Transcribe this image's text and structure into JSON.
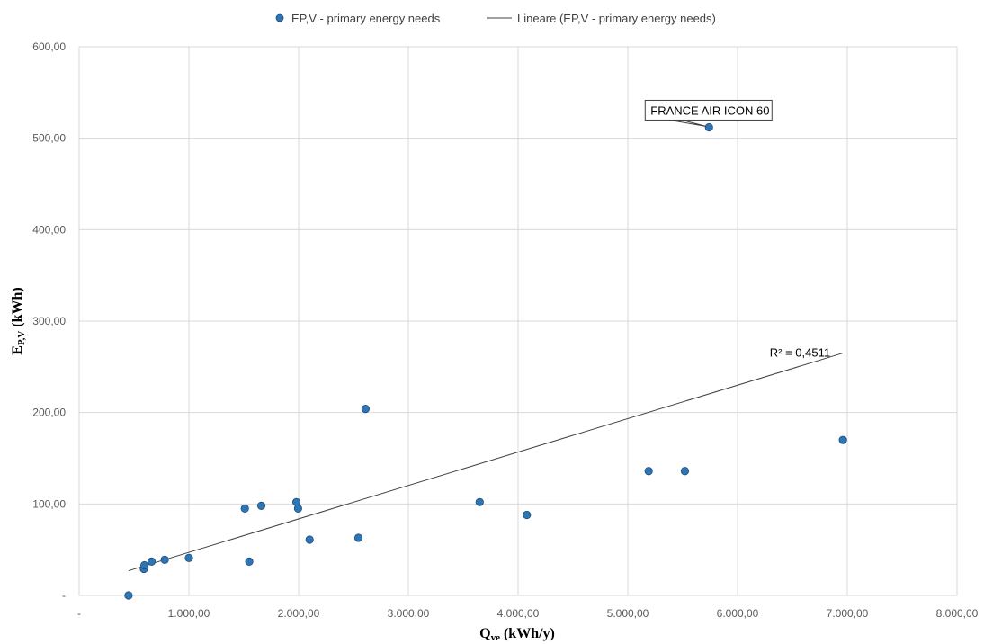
{
  "chart_data": {
    "type": "scatter",
    "xlabel": {
      "main": "Q",
      "sub": "ve",
      "rest": " (kWh/y)"
    },
    "ylabel": {
      "main": "E",
      "sub": "P,V",
      "rest": " (kWh)"
    },
    "xlim": [
      0,
      8000
    ],
    "ylim": [
      0,
      600
    ],
    "x_ticks": [
      {
        "value": 0,
        "label": "-"
      },
      {
        "value": 1000,
        "label": "1.000,00"
      },
      {
        "value": 2000,
        "label": "2.000,00"
      },
      {
        "value": 3000,
        "label": "3.000,00"
      },
      {
        "value": 4000,
        "label": "4.000,00"
      },
      {
        "value": 5000,
        "label": "5.000,00"
      },
      {
        "value": 6000,
        "label": "6.000,00"
      },
      {
        "value": 7000,
        "label": "7.000,00"
      },
      {
        "value": 8000,
        "label": "8.000,00"
      }
    ],
    "y_ticks": [
      {
        "value": 0,
        "label": "-"
      },
      {
        "value": 100,
        "label": "100,00"
      },
      {
        "value": 200,
        "label": "200,00"
      },
      {
        "value": 300,
        "label": "300,00"
      },
      {
        "value": 400,
        "label": "400,00"
      },
      {
        "value": 500,
        "label": "500,00"
      },
      {
        "value": 600,
        "label": "600,00"
      }
    ],
    "grid": true,
    "legend_position": "top",
    "series": [
      {
        "name": "EP,V - primary energy needs",
        "color": "#2e75b6",
        "points": [
          {
            "x": 450,
            "y": 0
          },
          {
            "x": 590,
            "y": 29
          },
          {
            "x": 595,
            "y": 33
          },
          {
            "x": 660,
            "y": 37
          },
          {
            "x": 780,
            "y": 39
          },
          {
            "x": 1000,
            "y": 41
          },
          {
            "x": 1510,
            "y": 95
          },
          {
            "x": 1550,
            "y": 37
          },
          {
            "x": 1660,
            "y": 98
          },
          {
            "x": 1980,
            "y": 102
          },
          {
            "x": 1995,
            "y": 95
          },
          {
            "x": 2100,
            "y": 61
          },
          {
            "x": 2545,
            "y": 63
          },
          {
            "x": 2610,
            "y": 204
          },
          {
            "x": 3650,
            "y": 102
          },
          {
            "x": 4080,
            "y": 88
          },
          {
            "x": 5190,
            "y": 136
          },
          {
            "x": 5520,
            "y": 136
          },
          {
            "x": 5740,
            "y": 512
          },
          {
            "x": 6960,
            "y": 170
          }
        ]
      }
    ],
    "trendline": {
      "name": "Lineare (EP,V - primary energy needs)",
      "color": "#404040",
      "x": [
        450,
        6960
      ],
      "y": [
        27,
        265
      ],
      "r2_label": "R² = 0,4511"
    },
    "annotations": [
      {
        "text": "FRANCE AIR ICON 60",
        "x": 5740,
        "y": 512
      }
    ]
  }
}
